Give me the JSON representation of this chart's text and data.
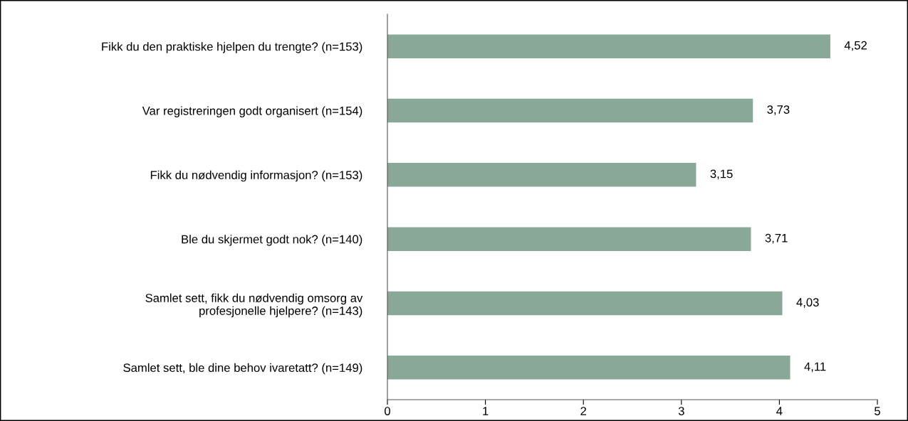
{
  "chart_data": {
    "type": "bar",
    "orientation": "horizontal",
    "categories": [
      "Fikk du den praktiske hjelpen du trengte? (n=153)",
      "Var registreringen godt organisert (n=154)",
      "Fikk du nødvendig informasjon? (n=153)",
      "Ble du skjermet godt nok? (n=140)",
      "Samlet sett, fikk du nødvendig omsorg av\nprofesjonelle hjelpere? (n=143)",
      "Samlet sett, ble dine behov ivaretatt? (n=149)"
    ],
    "values": [
      4.52,
      3.73,
      3.15,
      3.71,
      4.03,
      4.11
    ],
    "value_labels": [
      "4,52",
      "3,73",
      "3,15",
      "3,71",
      "4,03",
      "4,11"
    ],
    "color": "#8aa898",
    "xlim": [
      0,
      5
    ],
    "xticks": [
      0,
      1,
      2,
      3,
      4,
      5
    ],
    "grid": false,
    "legend": false
  }
}
